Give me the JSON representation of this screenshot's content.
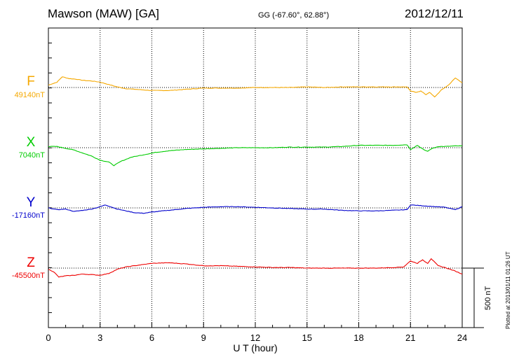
{
  "header": {
    "title": "Mawson (MAW)  [GA]",
    "coords": "GG (-67.60°,  62.88°)",
    "date": "2012/12/11"
  },
  "plotted_note": "Plotted at 2013/01/11 01:26 UT",
  "scale_label": "500 nT",
  "colors": {
    "F": "#f5a800",
    "X": "#00cc00",
    "Y": "#0000cc",
    "Z": "#ee0000",
    "grid": "#000000"
  },
  "chart_data": {
    "type": "line",
    "xlabel": "U T (hour)",
    "xlim": [
      0,
      24
    ],
    "x_ticks": [
      "0",
      "3",
      "6",
      "9",
      "12",
      "15",
      "18",
      "21",
      "24"
    ],
    "scale_bar_nT": 500,
    "series": [
      {
        "name": "F",
        "baseline_label": "49140nT",
        "baseline_nT": 49140,
        "x": [
          0,
          0.5,
          0.8,
          1.2,
          1.6,
          2.0,
          2.5,
          3.0,
          3.5,
          4.0,
          4.5,
          5.0,
          6,
          7,
          8,
          9,
          10,
          11,
          12,
          13,
          14,
          15,
          16,
          17,
          18,
          19,
          20,
          20.8,
          21.0,
          21.3,
          21.6,
          21.9,
          22.1,
          22.4,
          22.8,
          23.2,
          23.6,
          24
        ],
        "y": [
          20,
          45,
          90,
          75,
          70,
          60,
          55,
          45,
          25,
          5,
          -10,
          -15,
          -25,
          -25,
          -15,
          -5,
          -5,
          -5,
          0,
          0,
          0,
          5,
          0,
          5,
          5,
          5,
          5,
          5,
          -30,
          -40,
          -30,
          -60,
          -40,
          -80,
          -20,
          20,
          80,
          40
        ]
      },
      {
        "name": "X",
        "baseline_label": "7040nT",
        "baseline_nT": 7040,
        "x": [
          0,
          0.5,
          1.0,
          1.5,
          2.0,
          2.5,
          3.0,
          3.5,
          3.8,
          4.2,
          4.8,
          5.5,
          6.2,
          7,
          8,
          9,
          10,
          11,
          12,
          13,
          14,
          15,
          16,
          17,
          18,
          19,
          20,
          20.8,
          21.0,
          21.4,
          21.8,
          22.0,
          22.2,
          22.6,
          23.0,
          23.6,
          24
        ],
        "y": [
          10,
          10,
          -5,
          -20,
          -45,
          -70,
          -105,
          -120,
          -150,
          -115,
          -80,
          -60,
          -40,
          -25,
          -15,
          -10,
          -5,
          0,
          0,
          0,
          5,
          5,
          5,
          10,
          20,
          20,
          20,
          25,
          -15,
          20,
          -20,
          -30,
          -10,
          10,
          10,
          15,
          15
        ]
      },
      {
        "name": "Y",
        "baseline_label": "-17160nT",
        "baseline_nT": -17160,
        "x": [
          0,
          0.5,
          1.0,
          1.5,
          2.0,
          2.5,
          3.0,
          3.3,
          3.6,
          4.0,
          4.5,
          5.0,
          5.5,
          6,
          7,
          8,
          9,
          10,
          11,
          12,
          13,
          14,
          15,
          16,
          17,
          18,
          19,
          20,
          20.8,
          21.0,
          21.5,
          22.0,
          22.5,
          23.0,
          23.6,
          24
        ],
        "y": [
          0,
          -15,
          -10,
          -30,
          -20,
          -10,
          10,
          25,
          10,
          -10,
          -25,
          -40,
          -45,
          -35,
          -20,
          -5,
          5,
          10,
          10,
          5,
          0,
          -5,
          -10,
          -10,
          -20,
          -25,
          -25,
          -20,
          -15,
          25,
          20,
          15,
          10,
          5,
          -15,
          10
        ]
      },
      {
        "name": "Z",
        "baseline_label": "-45500nT",
        "baseline_nT": -45500,
        "x": [
          0,
          0.3,
          0.6,
          1.0,
          1.5,
          2.0,
          2.5,
          3.0,
          3.5,
          4.0,
          4.5,
          5.0,
          5.5,
          6,
          7,
          8,
          9,
          10,
          11,
          12,
          13,
          14,
          15,
          16,
          17,
          18,
          19,
          20,
          20.6,
          21.0,
          21.4,
          21.7,
          22.0,
          22.2,
          22.6,
          23.0,
          23.5,
          24
        ],
        "y": [
          -10,
          -30,
          -75,
          -65,
          -60,
          -50,
          -55,
          -60,
          -45,
          -10,
          10,
          20,
          30,
          40,
          45,
          35,
          20,
          20,
          15,
          10,
          5,
          5,
          0,
          0,
          0,
          0,
          0,
          5,
          10,
          60,
          40,
          70,
          40,
          80,
          20,
          5,
          -20,
          -50
        ]
      }
    ]
  }
}
